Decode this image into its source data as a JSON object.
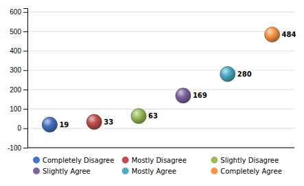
{
  "chart_data": {
    "type": "scatter",
    "categories": [
      "Completely Disagree",
      "Mostly Disagree",
      "Slightly Disagree",
      "Slightly Agree",
      "Mostly Agree",
      "Completely Agree"
    ],
    "values": [
      19,
      33,
      63,
      169,
      280,
      484
    ],
    "colors": [
      "#4472C4",
      "#C0504D",
      "#9BBB59",
      "#8064A2",
      "#4BACC6",
      "#F79646"
    ],
    "ylim": [
      -100,
      620
    ],
    "yticks": [
      -100,
      0,
      100,
      200,
      300,
      400,
      500,
      600
    ],
    "grid": true,
    "data_labels": true,
    "legend": "bottom",
    "tick_labels": "y"
  }
}
